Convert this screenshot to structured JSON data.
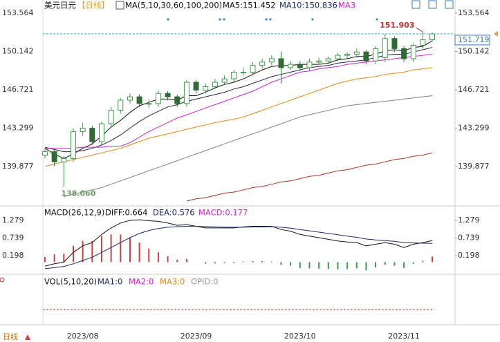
{
  "chart_data": [
    {
      "type": "candlestick",
      "title": "美元日元",
      "period": "【日线】",
      "indicator": "MA(5,10,30,60,100,200)",
      "ma_texts": [
        "MA5:151.452",
        "MA10:150.836",
        "MA3"
      ],
      "categories": [
        null,
        null,
        null,
        null,
        "2023/08",
        null,
        null,
        null,
        null,
        null,
        null,
        null,
        null,
        null,
        null,
        null,
        "2023/09",
        null,
        null,
        null,
        null,
        null,
        null,
        null,
        null,
        null,
        null,
        "2023/10",
        null,
        null,
        null,
        null,
        null,
        null,
        null,
        null,
        null,
        null,
        "2023/11",
        null,
        null,
        null
      ],
      "open": [
        140.9,
        141.2,
        140.3,
        140.6,
        143.0,
        143.3,
        142.1,
        143.7,
        144.9,
        145.8,
        146.1,
        145.5,
        145.5,
        146.4,
        146.1,
        145.5,
        147.4,
        146.7,
        147.0,
        147.4,
        147.7,
        148.3,
        148.3,
        148.9,
        149.2,
        149.5,
        148.7,
        149.0,
        148.7,
        149.2,
        149.3,
        149.5,
        149.8,
        149.9,
        150.1,
        149.3,
        149.6,
        151.3,
        150.4,
        149.5,
        150.7,
        151.2
      ],
      "high": [
        141.5,
        141.4,
        140.8,
        143.3,
        143.8,
        143.5,
        143.9,
        145.2,
        146.0,
        146.4,
        146.3,
        145.9,
        146.7,
        146.6,
        146.3,
        147.6,
        147.6,
        147.3,
        147.7,
        148.0,
        148.5,
        148.7,
        149.2,
        149.5,
        149.8,
        150.16,
        149.3,
        149.3,
        149.5,
        149.6,
        149.7,
        150.0,
        150.1,
        150.4,
        150.3,
        150.6,
        151.7,
        151.5,
        150.6,
        150.9,
        151.903,
        151.85
      ],
      "low": [
        140.6,
        139.9,
        138.06,
        140.3,
        142.6,
        141.8,
        141.8,
        143.4,
        144.6,
        145.5,
        145.2,
        145.1,
        145.2,
        145.8,
        145.2,
        145.2,
        146.4,
        146.4,
        146.8,
        147.2,
        147.4,
        148.0,
        148.0,
        148.6,
        148.9,
        147.3,
        148.5,
        148.4,
        148.4,
        149.0,
        149.0,
        149.3,
        149.5,
        149.6,
        149.0,
        149.0,
        149.2,
        150.1,
        149.2,
        149.2,
        150.4,
        151.0
      ],
      "close": [
        141.2,
        140.3,
        140.6,
        143.0,
        143.3,
        142.1,
        143.7,
        144.9,
        145.8,
        146.1,
        145.5,
        145.5,
        146.4,
        146.1,
        145.5,
        147.4,
        146.7,
        147.0,
        147.4,
        147.7,
        148.3,
        148.3,
        148.9,
        149.2,
        149.5,
        148.7,
        149.0,
        148.7,
        149.2,
        149.3,
        149.5,
        149.8,
        149.9,
        150.1,
        149.3,
        150.4,
        151.3,
        150.4,
        149.5,
        150.7,
        151.2,
        151.719
      ],
      "up_color": "#3d9a45",
      "down_color": "#2e6b36",
      "lines": [
        {
          "color": "#111111",
          "values": [
            141.5,
            141.0,
            140.6,
            141.0,
            141.5,
            141.9,
            142.6,
            143.4,
            144.0,
            144.7,
            145.3,
            145.6,
            145.9,
            145.9,
            145.8,
            146.2,
            146.2,
            146.5,
            146.9,
            147.2,
            147.4,
            147.7,
            148.1,
            148.5,
            148.8,
            148.9,
            148.9,
            149.0,
            149.0,
            149.0,
            149.1,
            149.4,
            149.5,
            149.7,
            149.7,
            149.9,
            150.2,
            150.3,
            150.2,
            150.5,
            150.6,
            151.1
          ]
        },
        {
          "color": "#222244",
          "values": [
            141.6,
            141.4,
            141.2,
            141.2,
            141.3,
            141.5,
            141.8,
            142.2,
            142.7,
            143.3,
            143.9,
            144.4,
            144.8,
            145.2,
            145.4,
            145.7,
            145.9,
            146.1,
            146.3,
            146.5,
            146.8,
            147.0,
            147.3,
            147.6,
            147.9,
            148.1,
            148.3,
            148.5,
            148.7,
            148.8,
            148.9,
            149.1,
            149.2,
            149.3,
            149.4,
            149.6,
            149.8,
            149.9,
            149.9,
            150.1,
            150.3,
            150.5
          ]
        },
        {
          "color": "#d020d0",
          "values": [
            141.5,
            141.5,
            141.5,
            141.5,
            141.6,
            141.6,
            141.6,
            141.7,
            141.7,
            142.0,
            142.5,
            143.0,
            143.4,
            143.8,
            144.2,
            144.5,
            144.8,
            145.1,
            145.4,
            145.7,
            146.0,
            146.3,
            146.6,
            147.0,
            147.4,
            147.7,
            148.0,
            148.3,
            148.4,
            148.6,
            148.7,
            148.8,
            149.0,
            149.1,
            149.2,
            149.3,
            149.4,
            149.5,
            149.6,
            149.7,
            149.8,
            149.9
          ]
        },
        {
          "color": "#e08a10",
          "values": [
            139.9,
            140.1,
            140.3,
            140.5,
            140.7,
            140.9,
            141.1,
            141.3,
            141.5,
            141.8,
            142.1,
            142.4,
            142.6,
            142.8,
            143.0,
            143.2,
            143.4,
            143.6,
            143.8,
            143.95,
            144.1,
            144.3,
            144.6,
            144.9,
            145.2,
            145.5,
            145.8,
            146.1,
            146.4,
            146.7,
            147.0,
            147.3,
            147.5,
            147.7,
            147.8,
            147.9,
            148.1,
            148.2,
            148.3,
            148.5,
            148.6,
            148.7
          ]
        },
        {
          "color": "#808080",
          "values": [
            null,
            null,
            137.2,
            137.4,
            137.6,
            137.8,
            138.0,
            138.3,
            138.6,
            138.9,
            139.2,
            139.5,
            139.8,
            140.1,
            140.4,
            140.7,
            141.0,
            141.3,
            141.6,
            141.9,
            142.2,
            142.5,
            142.8,
            143.1,
            143.4,
            143.7,
            144.0,
            144.3,
            144.5,
            144.7,
            144.9,
            145.1,
            145.3,
            145.4,
            145.5,
            145.6,
            145.7,
            145.8,
            145.9,
            146.0,
            146.1,
            146.2
          ]
        },
        {
          "color": "#b03020",
          "values": [
            null,
            null,
            null,
            null,
            null,
            null,
            null,
            null,
            null,
            null,
            null,
            null,
            null,
            null,
            null,
            136.8,
            137.0,
            137.1,
            137.3,
            137.5,
            137.6,
            137.8,
            138.0,
            138.1,
            138.3,
            138.5,
            138.6,
            138.8,
            139.0,
            139.1,
            139.3,
            139.5,
            139.6,
            139.8,
            140.0,
            140.1,
            140.3,
            140.5,
            140.6,
            140.8,
            140.9,
            141.1
          ]
        }
      ],
      "high_label": 151.903,
      "low_label": {
        "value": 138.06,
        "label": "138.060"
      },
      "last_price": 151.719,
      "last_price_color": "#2aa7c8",
      "ylim": [
        136.43,
        154.12
      ],
      "yticks": [
        153.564,
        150.142,
        146.721,
        143.299,
        139.877
      ]
    },
    {
      "type": "macd",
      "title": "MACD(26,12,9)",
      "legend": [
        "DIFF:0.664",
        "DEA:0.576",
        "MACD:0.177"
      ],
      "series": [
        {
          "color": "#111111",
          "values": [
            -0.12,
            -0.05,
            0.0,
            0.3,
            0.5,
            0.6,
            0.85,
            1.05,
            1.2,
            1.28,
            1.3,
            1.27,
            1.25,
            1.2,
            1.13,
            1.15,
            1.1,
            1.05,
            1.05,
            1.05,
            1.05,
            1.08,
            1.1,
            1.1,
            1.1,
            1.0,
            0.95,
            0.85,
            0.8,
            0.75,
            0.7,
            0.65,
            0.62,
            0.6,
            0.5,
            0.55,
            0.6,
            0.55,
            0.45,
            0.55,
            0.6,
            0.664
          ]
        },
        {
          "color": "#1a2a6a",
          "values": [
            -0.2,
            -0.17,
            -0.13,
            -0.05,
            0.05,
            0.15,
            0.3,
            0.45,
            0.6,
            0.75,
            0.88,
            0.97,
            1.03,
            1.07,
            1.09,
            1.1,
            1.1,
            1.09,
            1.08,
            1.07,
            1.07,
            1.07,
            1.08,
            1.08,
            1.09,
            1.07,
            1.04,
            1.0,
            0.96,
            0.92,
            0.88,
            0.84,
            0.8,
            0.76,
            0.71,
            0.68,
            0.66,
            0.64,
            0.6,
            0.59,
            0.58,
            0.576
          ]
        }
      ],
      "histogram": [
        0.16,
        0.24,
        0.26,
        0.5,
        0.65,
        0.65,
        0.8,
        0.85,
        0.85,
        0.75,
        0.6,
        0.42,
        0.3,
        0.18,
        0.08,
        0.1,
        0.0,
        -0.05,
        -0.04,
        -0.03,
        -0.03,
        0.02,
        0.03,
        0.03,
        0.02,
        -0.09,
        -0.11,
        -0.18,
        -0.19,
        -0.2,
        -0.21,
        -0.22,
        -0.21,
        -0.19,
        -0.25,
        -0.16,
        -0.08,
        -0.11,
        -0.18,
        -0.05,
        0.04,
        0.177
      ],
      "pos_color": "#d04040",
      "neg_color": "#3a9a50",
      "ylim": [
        -0.33,
        1.64
      ],
      "yticks": [
        1.279,
        0.739,
        0.198
      ]
    },
    {
      "type": "volume",
      "title": "VOL(5,10,20)",
      "legend": [
        "MA1:0",
        "MA2:0",
        "MA3:0",
        "OPID:0"
      ]
    }
  ],
  "toolbar": {
    "tab": "日线"
  }
}
